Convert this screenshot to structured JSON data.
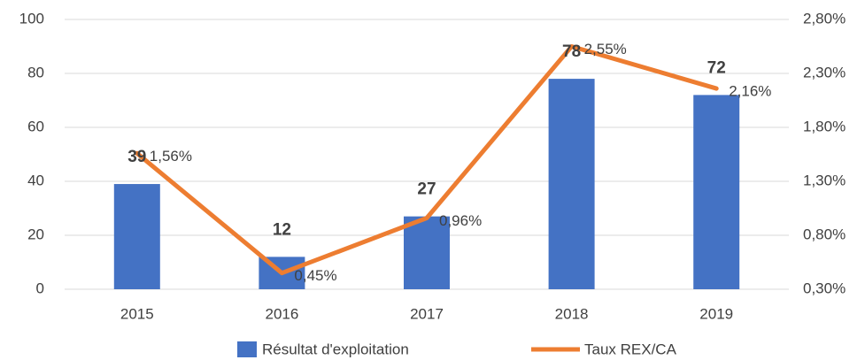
{
  "chart_data": {
    "type": "bar",
    "categories": [
      "2015",
      "2016",
      "2017",
      "2018",
      "2019"
    ],
    "series": [
      {
        "name": "Résultat d'exploitation",
        "type": "bar",
        "color": "#4472c4",
        "values": [
          39,
          12,
          27,
          78,
          72
        ]
      },
      {
        "name": "Taux REX/CA",
        "type": "line",
        "axis": "y2",
        "color": "#ed7d31",
        "values": [
          1.56,
          0.45,
          0.96,
          2.55,
          2.16
        ],
        "value_labels": [
          "1,56%",
          "0,45%",
          "0,96%",
          "2,55%",
          "2,16%"
        ]
      }
    ],
    "ylim": [
      0,
      100
    ],
    "yticks": [
      0,
      20,
      40,
      60,
      80,
      100
    ],
    "y2lim": [
      0.3,
      2.8
    ],
    "y2ticks": [
      {
        "value": 0.3,
        "label": "0,30%"
      },
      {
        "value": 0.8,
        "label": "0,80%"
      },
      {
        "value": 1.3,
        "label": "1,30%"
      },
      {
        "value": 1.8,
        "label": "1,80%"
      },
      {
        "value": 2.3,
        "label": "2,30%"
      },
      {
        "value": 2.8,
        "label": "2,80%"
      }
    ],
    "grid": true,
    "legend": "bottom"
  }
}
